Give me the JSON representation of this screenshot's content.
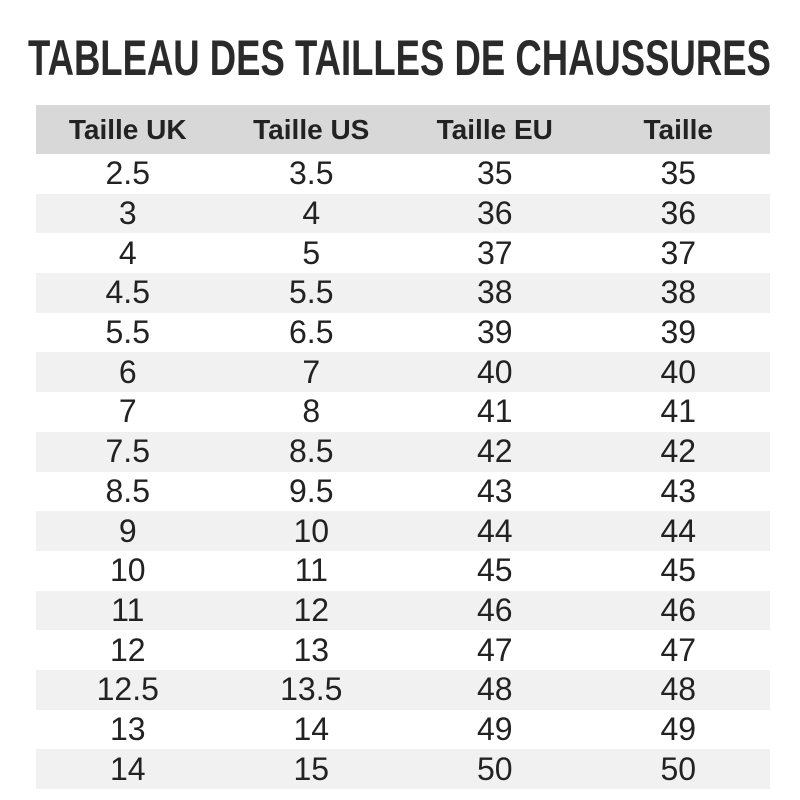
{
  "chart_data": {
    "type": "table",
    "title": "TABLEAU DES TAILLES DE CHAUSSURES",
    "columns": [
      "Taille UK",
      "Taille US",
      "Taille EU",
      "Taille"
    ],
    "rows": [
      [
        "2.5",
        "3.5",
        "35",
        "35"
      ],
      [
        "3",
        "4",
        "36",
        "36"
      ],
      [
        "4",
        "5",
        "37",
        "37"
      ],
      [
        "4.5",
        "5.5",
        "38",
        "38"
      ],
      [
        "5.5",
        "6.5",
        "39",
        "39"
      ],
      [
        "6",
        "7",
        "40",
        "40"
      ],
      [
        "7",
        "8",
        "41",
        "41"
      ],
      [
        "7.5",
        "8.5",
        "42",
        "42"
      ],
      [
        "8.5",
        "9.5",
        "43",
        "43"
      ],
      [
        "9",
        "10",
        "44",
        "44"
      ],
      [
        "10",
        "11",
        "45",
        "45"
      ],
      [
        "11",
        "12",
        "46",
        "46"
      ],
      [
        "12",
        "13",
        "47",
        "47"
      ],
      [
        "12.5",
        "13.5",
        "48",
        "48"
      ],
      [
        "13",
        "14",
        "49",
        "49"
      ],
      [
        "14",
        "15",
        "50",
        "50"
      ]
    ],
    "layout": {
      "alternating_row_shading": "even rows shaded",
      "column_alignment": "center",
      "grid": "none"
    }
  },
  "colors": {
    "header_bg": "#d8d8d8",
    "alt_row_bg": "#f1f1f1",
    "row_bg": "#ffffff",
    "text": "#222222",
    "title": "#2a2a2a"
  }
}
